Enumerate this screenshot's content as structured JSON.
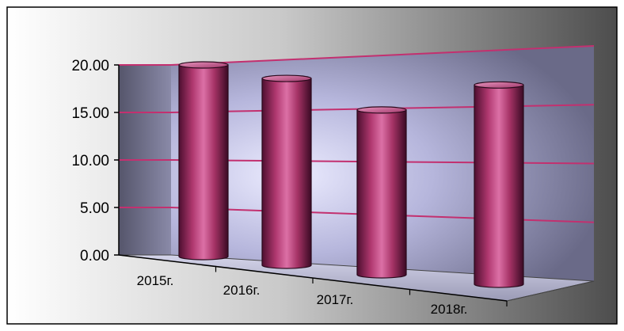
{
  "chart_data": {
    "type": "bar",
    "style": "3d-cylinder",
    "categories": [
      "2015г.",
      "2016г.",
      "2017г.",
      "2018г."
    ],
    "values": [
      20.0,
      19.5,
      17.2,
      20.8
    ],
    "ylim": [
      0,
      20
    ],
    "yticks": [
      "0.00",
      "5.00",
      "10.00",
      "15.00",
      "20.00"
    ],
    "title": "",
    "xlabel": "",
    "ylabel": "",
    "grid": true,
    "legend": "none",
    "colors": {
      "bar": "#b23a78",
      "bar_dark": "#4a0d2c",
      "bar_light": "#e07aac",
      "gridline": "#c3306f",
      "wall_light": "#e6e6ff",
      "wall_dark": "#5a5a72",
      "background_light": "#ffffff",
      "background_dark": "#4a4a4a"
    }
  }
}
